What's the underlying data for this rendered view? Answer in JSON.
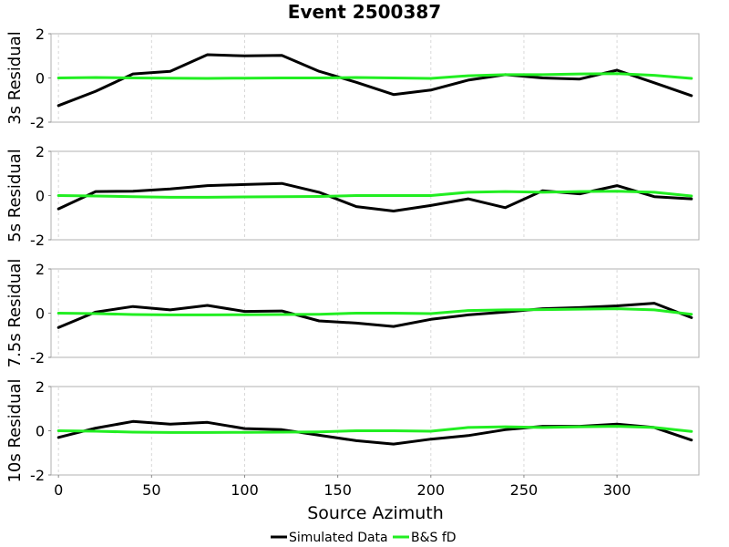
{
  "chart_data": {
    "type": "line",
    "title": "Event 2500387",
    "xlabel": "Source Azimuth",
    "xlim": [
      -4,
      344
    ],
    "x_ticks": [
      0,
      50,
      100,
      150,
      200,
      250,
      300
    ],
    "x": [
      0,
      20,
      40,
      60,
      80,
      100,
      120,
      140,
      160,
      180,
      200,
      220,
      240,
      260,
      280,
      300,
      320,
      340
    ],
    "legend_position": "bottom-center",
    "colors": {
      "simulated": "#000000",
      "bs_fd": "#22ee22"
    },
    "legend": [
      {
        "label": "Simulated Data",
        "color": "#000000"
      },
      {
        "label": "B&S fD",
        "color": "#22ee22"
      }
    ],
    "panels": [
      {
        "ylabel": "3s Residual",
        "ylim": [
          -2,
          2
        ],
        "y_ticks": [
          -2,
          0,
          2
        ],
        "series": [
          {
            "name": "Simulated Data",
            "values": [
              -1.25,
              -0.6,
              0.18,
              0.3,
              1.05,
              1.0,
              1.02,
              0.3,
              -0.2,
              -0.75,
              -0.55,
              -0.1,
              0.15,
              0.0,
              -0.05,
              0.35,
              -0.22,
              -0.8
            ]
          },
          {
            "name": "B&S fD",
            "values": [
              0.0,
              0.02,
              0.0,
              -0.01,
              -0.02,
              -0.01,
              0.0,
              0.0,
              0.02,
              0.0,
              -0.02,
              0.1,
              0.15,
              0.15,
              0.18,
              0.2,
              0.12,
              -0.02
            ]
          }
        ]
      },
      {
        "ylabel": "5s Residual",
        "ylim": [
          -2,
          2
        ],
        "y_ticks": [
          -2,
          0,
          2
        ],
        "series": [
          {
            "name": "Simulated Data",
            "values": [
              -0.6,
              0.18,
              0.2,
              0.3,
              0.45,
              0.5,
              0.55,
              0.15,
              -0.5,
              -0.7,
              -0.45,
              -0.15,
              -0.55,
              0.22,
              0.08,
              0.45,
              -0.05,
              -0.15
            ]
          },
          {
            "name": "B&S fD",
            "values": [
              0.0,
              -0.02,
              -0.05,
              -0.08,
              -0.08,
              -0.06,
              -0.05,
              -0.04,
              0.0,
              0.0,
              0.0,
              0.15,
              0.18,
              0.15,
              0.18,
              0.2,
              0.15,
              -0.02
            ]
          }
        ]
      },
      {
        "ylabel": "7.5s Residual",
        "ylim": [
          -2,
          2
        ],
        "y_ticks": [
          -2,
          0,
          2
        ],
        "series": [
          {
            "name": "Simulated Data",
            "values": [
              -0.65,
              0.05,
              0.3,
              0.15,
              0.35,
              0.08,
              0.1,
              -0.35,
              -0.45,
              -0.6,
              -0.28,
              -0.08,
              0.05,
              0.2,
              0.25,
              0.33,
              0.45,
              -0.2
            ]
          },
          {
            "name": "B&S fD",
            "values": [
              0.0,
              -0.02,
              -0.06,
              -0.08,
              -0.08,
              -0.07,
              -0.06,
              -0.05,
              0.0,
              0.0,
              -0.02,
              0.12,
              0.15,
              0.16,
              0.18,
              0.2,
              0.15,
              -0.05
            ]
          }
        ]
      },
      {
        "ylabel": "10s Residual",
        "ylim": [
          -2,
          2
        ],
        "y_ticks": [
          -2,
          0,
          2
        ],
        "series": [
          {
            "name": "Simulated Data",
            "values": [
              -0.3,
              0.12,
              0.42,
              0.3,
              0.38,
              0.1,
              0.05,
              -0.2,
              -0.45,
              -0.6,
              -0.38,
              -0.22,
              0.05,
              0.2,
              0.2,
              0.3,
              0.15,
              -0.42
            ]
          },
          {
            "name": "B&S fD",
            "values": [
              0.0,
              -0.02,
              -0.06,
              -0.08,
              -0.08,
              -0.07,
              -0.06,
              -0.05,
              0.0,
              0.0,
              -0.02,
              0.15,
              0.18,
              0.15,
              0.18,
              0.2,
              0.15,
              -0.03
            ]
          }
        ]
      }
    ]
  }
}
